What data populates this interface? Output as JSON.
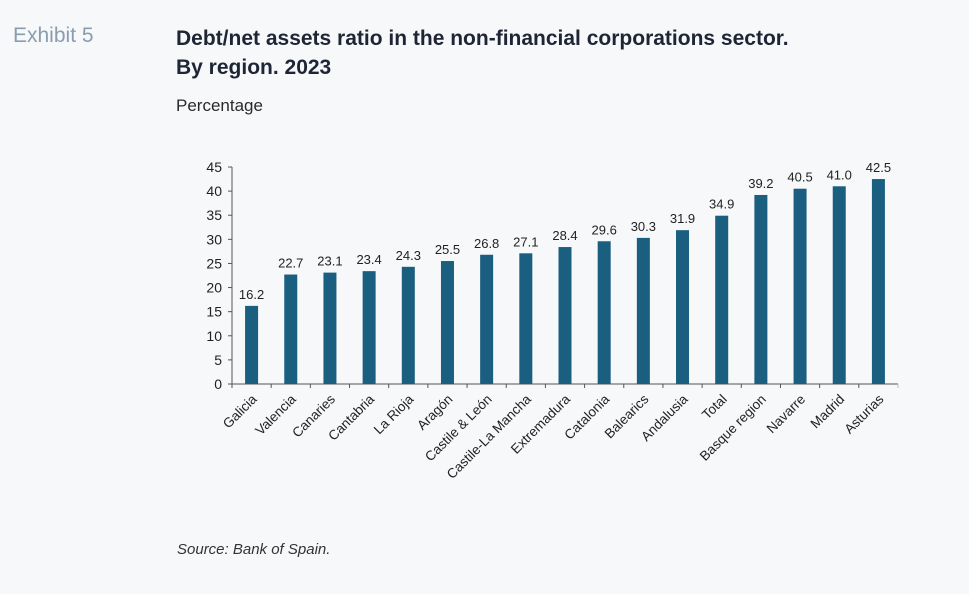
{
  "header": {
    "exhibit": "Exhibit 5",
    "title_line1": "Debt/net assets ratio in the non-financial corporations sector.",
    "title_line2": "By region. 2023",
    "subtitle": "Percentage"
  },
  "footer": {
    "source": "Source: Bank of Spain."
  },
  "colors": {
    "bar": "#1a5e80",
    "axis": "#555555"
  },
  "chart_data": {
    "type": "bar",
    "title": "Debt/net assets ratio in the non-financial corporations sector. By region. 2023",
    "ylabel": "Percentage",
    "xlabel": "",
    "ylim": [
      0,
      45
    ],
    "yticks": [
      0,
      5,
      10,
      15,
      20,
      25,
      30,
      35,
      40,
      45
    ],
    "grid": false,
    "legend": "none",
    "categories": [
      "Galicia",
      "Valencia",
      "Canaries",
      "Cantabria",
      "La Rioja",
      "Aragón",
      "Castile & León",
      "Castile-La Mancha",
      "Extremadura",
      "Catalonia",
      "Balearics",
      "Andalusia",
      "Total",
      "Basque region",
      "Navarre",
      "Madrid",
      "Asturias"
    ],
    "values": [
      16.2,
      22.7,
      23.1,
      23.4,
      24.3,
      25.5,
      26.8,
      27.1,
      28.4,
      29.6,
      30.3,
      31.9,
      34.9,
      39.2,
      40.5,
      41.0,
      42.5
    ],
    "data_labels": [
      "16.2",
      "22.7",
      "23.1",
      "23.4",
      "24.3",
      "25.5",
      "26.8",
      "27.1",
      "28.4",
      "29.6",
      "30.3",
      "31.9",
      "34.9",
      "39.2",
      "40.5",
      "41.0",
      "42.5"
    ]
  }
}
